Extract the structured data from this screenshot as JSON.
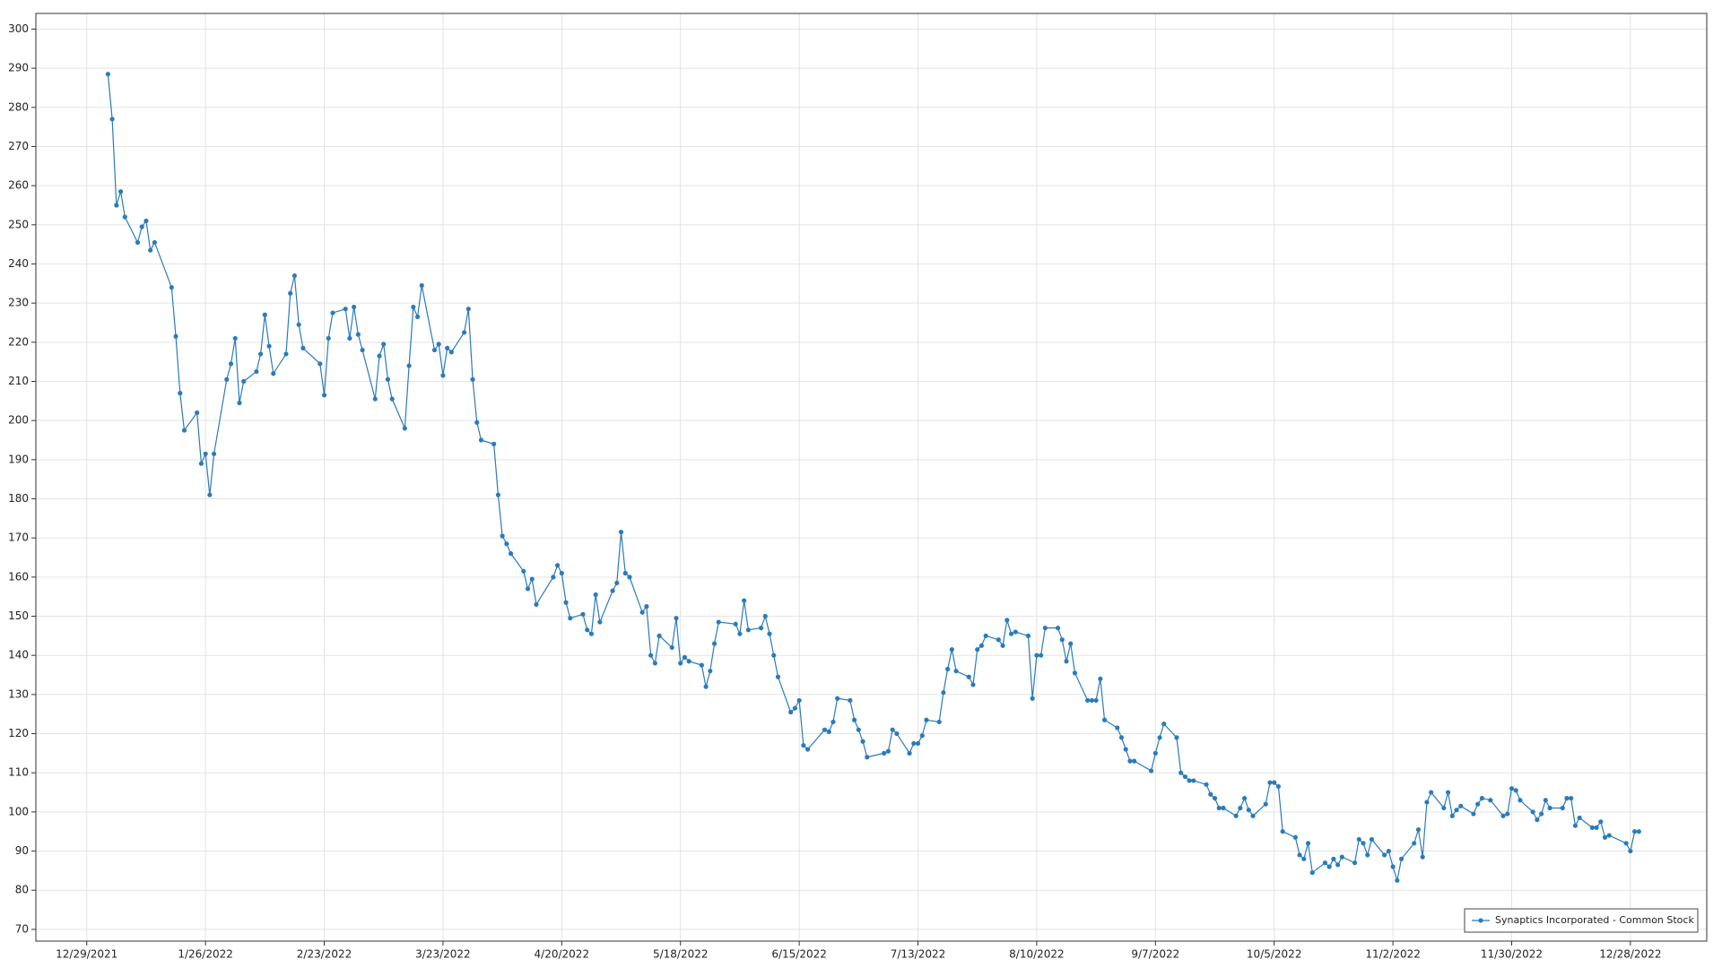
{
  "chart_data": {
    "type": "line",
    "xlim": [
      "2021-12-17",
      "2023-01-15"
    ],
    "xticks": [
      {
        "value": "2021-12-29",
        "label": "12/29/2021"
      },
      {
        "value": "2022-01-26",
        "label": "1/26/2022"
      },
      {
        "value": "2022-02-23",
        "label": "2/23/2022"
      },
      {
        "value": "2022-03-23",
        "label": "3/23/2022"
      },
      {
        "value": "2022-04-20",
        "label": "4/20/2022"
      },
      {
        "value": "2022-05-18",
        "label": "5/18/2022"
      },
      {
        "value": "2022-06-15",
        "label": "6/15/2022"
      },
      {
        "value": "2022-07-13",
        "label": "7/13/2022"
      },
      {
        "value": "2022-08-10",
        "label": "8/10/2022"
      },
      {
        "value": "2022-09-07",
        "label": "9/7/2022"
      },
      {
        "value": "2022-10-05",
        "label": "10/5/2022"
      },
      {
        "value": "2022-11-02",
        "label": "11/2/2022"
      },
      {
        "value": "2022-11-30",
        "label": "11/30/2022"
      },
      {
        "value": "2022-12-28",
        "label": "12/28/2022"
      }
    ],
    "ylim": [
      67,
      304
    ],
    "yticks": [
      70,
      80,
      90,
      100,
      110,
      120,
      130,
      140,
      150,
      160,
      170,
      180,
      190,
      200,
      210,
      220,
      230,
      240,
      250,
      260,
      270,
      280,
      290,
      300
    ],
    "grid": true,
    "legend": "lower right",
    "x": [
      "2022-01-03",
      "2022-01-04",
      "2022-01-05",
      "2022-01-06",
      "2022-01-07",
      "2022-01-10",
      "2022-01-11",
      "2022-01-12",
      "2022-01-13",
      "2022-01-14",
      "2022-01-18",
      "2022-01-19",
      "2022-01-20",
      "2022-01-21",
      "2022-01-24",
      "2022-01-25",
      "2022-01-26",
      "2022-01-27",
      "2022-01-28",
      "2022-01-31",
      "2022-02-01",
      "2022-02-02",
      "2022-02-03",
      "2022-02-04",
      "2022-02-07",
      "2022-02-08",
      "2022-02-09",
      "2022-02-10",
      "2022-02-11",
      "2022-02-14",
      "2022-02-15",
      "2022-02-16",
      "2022-02-17",
      "2022-02-18",
      "2022-02-22",
      "2022-02-23",
      "2022-02-24",
      "2022-02-25",
      "2022-02-28",
      "2022-03-01",
      "2022-03-02",
      "2022-03-03",
      "2022-03-04",
      "2022-03-07",
      "2022-03-08",
      "2022-03-09",
      "2022-03-10",
      "2022-03-11",
      "2022-03-14",
      "2022-03-15",
      "2022-03-16",
      "2022-03-17",
      "2022-03-18",
      "2022-03-21",
      "2022-03-22",
      "2022-03-23",
      "2022-03-24",
      "2022-03-25",
      "2022-03-28",
      "2022-03-29",
      "2022-03-30",
      "2022-03-31",
      "2022-04-01",
      "2022-04-04",
      "2022-04-05",
      "2022-04-06",
      "2022-04-07",
      "2022-04-08",
      "2022-04-11",
      "2022-04-12",
      "2022-04-13",
      "2022-04-14",
      "2022-04-18",
      "2022-04-19",
      "2022-04-20",
      "2022-04-21",
      "2022-04-22",
      "2022-04-25",
      "2022-04-26",
      "2022-04-27",
      "2022-04-28",
      "2022-04-29",
      "2022-05-02",
      "2022-05-03",
      "2022-05-04",
      "2022-05-05",
      "2022-05-06",
      "2022-05-09",
      "2022-05-10",
      "2022-05-11",
      "2022-05-12",
      "2022-05-13",
      "2022-05-16",
      "2022-05-17",
      "2022-05-18",
      "2022-05-19",
      "2022-05-20",
      "2022-05-23",
      "2022-05-24",
      "2022-05-25",
      "2022-05-26",
      "2022-05-27",
      "2022-05-31",
      "2022-06-01",
      "2022-06-02",
      "2022-06-03",
      "2022-06-06",
      "2022-06-07",
      "2022-06-08",
      "2022-06-09",
      "2022-06-10",
      "2022-06-13",
      "2022-06-14",
      "2022-06-15",
      "2022-06-16",
      "2022-06-17",
      "2022-06-21",
      "2022-06-22",
      "2022-06-23",
      "2022-06-24",
      "2022-06-27",
      "2022-06-28",
      "2022-06-29",
      "2022-06-30",
      "2022-07-01",
      "2022-07-05",
      "2022-07-06",
      "2022-07-07",
      "2022-07-08",
      "2022-07-11",
      "2022-07-12",
      "2022-07-13",
      "2022-07-14",
      "2022-07-15",
      "2022-07-18",
      "2022-07-19",
      "2022-07-20",
      "2022-07-21",
      "2022-07-22",
      "2022-07-25",
      "2022-07-26",
      "2022-07-27",
      "2022-07-28",
      "2022-07-29",
      "2022-08-01",
      "2022-08-02",
      "2022-08-03",
      "2022-08-04",
      "2022-08-05",
      "2022-08-08",
      "2022-08-09",
      "2022-08-10",
      "2022-08-11",
      "2022-08-12",
      "2022-08-15",
      "2022-08-16",
      "2022-08-17",
      "2022-08-18",
      "2022-08-19",
      "2022-08-22",
      "2022-08-23",
      "2022-08-24",
      "2022-08-25",
      "2022-08-26",
      "2022-08-29",
      "2022-08-30",
      "2022-08-31",
      "2022-09-01",
      "2022-09-02",
      "2022-09-06",
      "2022-09-07",
      "2022-09-08",
      "2022-09-09",
      "2022-09-12",
      "2022-09-13",
      "2022-09-14",
      "2022-09-15",
      "2022-09-16",
      "2022-09-19",
      "2022-09-20",
      "2022-09-21",
      "2022-09-22",
      "2022-09-23",
      "2022-09-26",
      "2022-09-27",
      "2022-09-28",
      "2022-09-29",
      "2022-09-30",
      "2022-10-03",
      "2022-10-04",
      "2022-10-05",
      "2022-10-06",
      "2022-10-07",
      "2022-10-10",
      "2022-10-11",
      "2022-10-12",
      "2022-10-13",
      "2022-10-14",
      "2022-10-17",
      "2022-10-18",
      "2022-10-19",
      "2022-10-20",
      "2022-10-21",
      "2022-10-24",
      "2022-10-25",
      "2022-10-26",
      "2022-10-27",
      "2022-10-28",
      "2022-10-31",
      "2022-11-01",
      "2022-11-02",
      "2022-11-03",
      "2022-11-04",
      "2022-11-07",
      "2022-11-08",
      "2022-11-09",
      "2022-11-10",
      "2022-11-11",
      "2022-11-14",
      "2022-11-15",
      "2022-11-16",
      "2022-11-17",
      "2022-11-18",
      "2022-11-21",
      "2022-11-22",
      "2022-11-23",
      "2022-11-25",
      "2022-11-28",
      "2022-11-29",
      "2022-11-30",
      "2022-12-01",
      "2022-12-02",
      "2022-12-05",
      "2022-12-06",
      "2022-12-07",
      "2022-12-08",
      "2022-12-09",
      "2022-12-12",
      "2022-12-13",
      "2022-12-14",
      "2022-12-15",
      "2022-12-16",
      "2022-12-19",
      "2022-12-20",
      "2022-12-21",
      "2022-12-22",
      "2022-12-23",
      "2022-12-27",
      "2022-12-28",
      "2022-12-29",
      "2022-12-30"
    ],
    "series": [
      {
        "name": "Synaptics Incorporated - Common Stock",
        "color": "#2b7bba",
        "values": [
          288.5,
          277,
          255,
          258.5,
          252,
          245.5,
          249.5,
          251,
          243.5,
          245.5,
          234,
          221.5,
          207,
          197.5,
          202,
          189,
          191.5,
          181,
          191.5,
          210.5,
          214.5,
          221,
          204.5,
          210,
          212.5,
          217,
          227,
          219,
          212,
          217,
          232.5,
          237,
          224.5,
          218.5,
          214.5,
          206.5,
          221,
          227.5,
          228.5,
          221,
          229,
          222,
          218,
          205.5,
          216.5,
          219.5,
          210.5,
          205.5,
          198,
          214,
          229,
          226.5,
          234.5,
          218,
          219.5,
          211.5,
          218.5,
          217.5,
          222.5,
          228.5,
          210.5,
          199.5,
          195,
          194,
          181,
          170.5,
          168.5,
          166,
          161.5,
          157,
          159.5,
          153,
          160,
          163,
          161,
          153.5,
          149.5,
          150.5,
          146.5,
          145.5,
          155.5,
          148.5,
          156.5,
          158.5,
          171.5,
          161,
          160,
          151,
          152.5,
          140,
          138,
          145,
          142,
          149.5,
          138,
          139.5,
          138.5,
          137.5,
          132,
          136,
          143,
          148.5,
          148,
          145.5,
          154,
          146.5,
          147,
          150,
          145.5,
          140,
          134.5,
          125.5,
          126.5,
          128.5,
          117,
          116,
          121,
          120.5,
          123,
          129,
          128.5,
          123.5,
          121,
          118,
          114,
          115,
          115.5,
          121,
          120,
          115,
          117.5,
          117.5,
          119.5,
          123.5,
          123,
          130.5,
          136.5,
          141.5,
          136,
          134.5,
          132.5,
          141.5,
          142.5,
          145,
          144,
          142.5,
          149,
          145.5,
          146,
          145,
          129,
          140,
          140,
          147,
          147,
          144,
          138.5,
          143,
          135.5,
          128.5,
          128.5,
          128.5,
          134,
          123.5,
          121.5,
          119,
          116,
          113,
          113,
          110.5,
          115,
          119,
          122.5,
          119,
          110,
          109,
          108,
          108,
          107,
          104.5,
          103.5,
          101,
          101,
          99,
          101,
          103.5,
          100.5,
          99,
          102,
          107.5,
          107.5,
          106.5,
          95,
          93.5,
          89,
          88,
          92,
          84.5,
          87,
          86,
          88,
          86.5,
          88.5,
          87,
          93,
          92,
          89,
          93,
          89,
          90,
          86,
          82.5,
          88,
          92,
          95.5,
          88.5,
          102.5,
          105,
          101,
          105,
          99,
          100.5,
          101.5,
          99.5,
          102,
          103.5,
          103,
          99,
          99.5,
          106,
          105.5,
          103,
          100,
          98,
          99.5,
          103,
          101,
          101,
          103.5,
          103.5,
          96.5,
          98.5,
          96,
          96,
          97.5,
          93.5,
          94,
          92,
          90,
          95,
          95
        ]
      }
    ]
  }
}
